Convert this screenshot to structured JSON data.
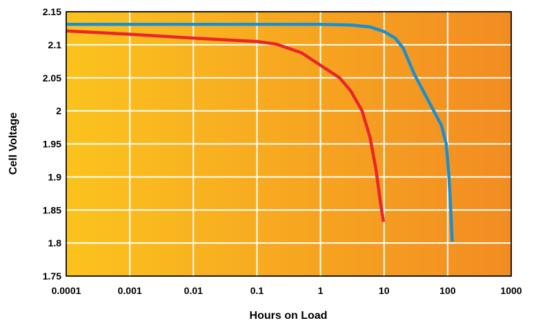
{
  "chart_data": {
    "type": "line",
    "title": "",
    "xlabel": "Hours on Load",
    "ylabel": "Cell Voltage",
    "xscale": "log",
    "xlim": [
      0.0001,
      1000
    ],
    "ylim": [
      1.75,
      2.15
    ],
    "x_ticks": [
      "0.0001",
      "0.001",
      "0.01",
      "0.1",
      "1",
      "10",
      "100",
      "1000"
    ],
    "y_ticks": [
      "2.15",
      "2.1",
      "2.05",
      "2",
      "1.95",
      "1.9",
      "1.85",
      "1.8",
      "1.75"
    ],
    "grid": true,
    "background_gradient": [
      "#fbc31e",
      "#f28c22"
    ],
    "series": [
      {
        "color": "#1a8fd0",
        "points": [
          [
            0.0001,
            2.131
          ],
          [
            0.001,
            2.131
          ],
          [
            0.01,
            2.131
          ],
          [
            0.1,
            2.131
          ],
          [
            1,
            2.131
          ],
          [
            3,
            2.13
          ],
          [
            6,
            2.127
          ],
          [
            10,
            2.12
          ],
          [
            15,
            2.11
          ],
          [
            20,
            2.095
          ],
          [
            30,
            2.055
          ],
          [
            50,
            2.015
          ],
          [
            80,
            1.978
          ],
          [
            95,
            1.95
          ],
          [
            105,
            1.9
          ],
          [
            112,
            1.85
          ],
          [
            118,
            1.802
          ]
        ]
      },
      {
        "color": "#e8262b",
        "points": [
          [
            0.0001,
            2.121
          ],
          [
            0.001,
            2.116
          ],
          [
            0.01,
            2.11
          ],
          [
            0.1,
            2.105
          ],
          [
            0.2,
            2.101
          ],
          [
            0.5,
            2.088
          ],
          [
            1,
            2.069
          ],
          [
            2,
            2.05
          ],
          [
            3,
            2.03
          ],
          [
            4.5,
            2.0
          ],
          [
            6,
            1.96
          ],
          [
            7.5,
            1.91
          ],
          [
            8.8,
            1.86
          ],
          [
            9.8,
            1.832
          ]
        ]
      }
    ]
  }
}
